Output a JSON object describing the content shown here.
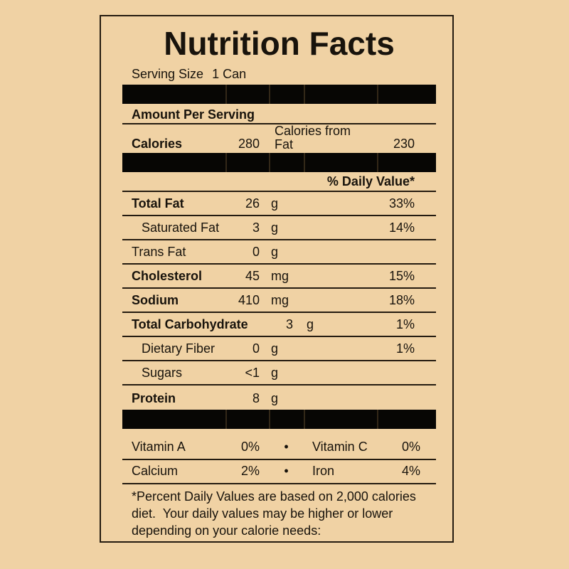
{
  "colors": {
    "background": "#f0d2a4",
    "bar": "#070604",
    "rule": "#241b10",
    "text": "#18130c"
  },
  "label": {
    "title": "Nutrition Facts",
    "serving": {
      "label": "Serving Size",
      "value": "1 Can"
    },
    "amount_per_serving": "Amount Per Serving",
    "calories": {
      "label": "Calories",
      "value": "280",
      "fat_label": "Calories from Fat",
      "fat_value": "230"
    },
    "daily_value_header": "% Daily Value*",
    "nutrients": [
      {
        "name": "Total Fat",
        "amount": "26",
        "unit": "g",
        "dv": "33%"
      },
      {
        "name": "Saturated Fat",
        "amount": "3",
        "unit": "g",
        "dv": "14%"
      },
      {
        "name": "Trans Fat",
        "amount": "0",
        "unit": "g",
        "dv": ""
      },
      {
        "name": "Cholesterol",
        "amount": "45",
        "unit": "mg",
        "dv": "15%"
      },
      {
        "name": "Sodium",
        "amount": "410",
        "unit": "mg",
        "dv": "18%"
      },
      {
        "name": "Total Carbohydrate",
        "amount": "3",
        "unit": "g",
        "dv": "1%"
      },
      {
        "name": "Dietary Fiber",
        "amount": "0",
        "unit": "g",
        "dv": "1%"
      },
      {
        "name": "Sugars",
        "amount": "<1",
        "unit": "g",
        "dv": ""
      },
      {
        "name": "Protein",
        "amount": "8",
        "unit": "g",
        "dv": ""
      }
    ],
    "micronutrients": [
      {
        "name1": "Vitamin A",
        "value1": "0%",
        "bullet": "•",
        "name2": "Vitamin C",
        "value2": "0%"
      },
      {
        "name1": "Calcium",
        "value1": "2%",
        "bullet": "•",
        "name2": "Iron",
        "value2": "4%"
      }
    ],
    "footnote": "*Percent Daily Values are based on 2,000 calories diet.  Your daily values may be higher or lower depending on your calorie needs:"
  }
}
